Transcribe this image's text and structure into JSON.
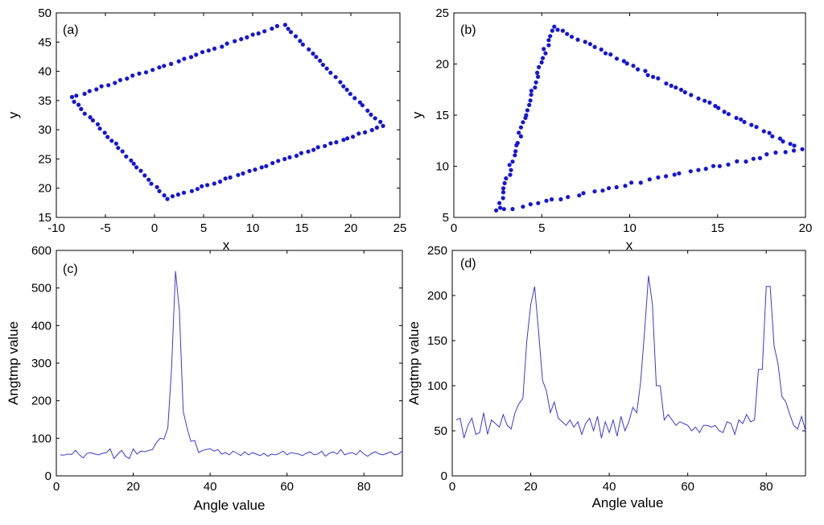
{
  "chart_data": [
    {
      "type": "scatter",
      "panel_label": "(a)",
      "xlabel": "x",
      "ylabel": "y",
      "xlim": [
        -10,
        25
      ],
      "ylim": [
        15,
        50
      ],
      "xticks": [
        -10,
        -5,
        0,
        5,
        10,
        15,
        20,
        25
      ],
      "yticks": [
        15,
        20,
        25,
        30,
        35,
        40,
        45,
        50
      ],
      "marker_color": "#1515d8",
      "vertices": [
        [
          -8.5,
          35.5
        ],
        [
          13.2,
          48.0
        ],
        [
          23.3,
          30.6
        ],
        [
          1.3,
          18.2
        ]
      ],
      "points_per_edge": [
        34,
        25,
        37,
        26
      ]
    },
    {
      "type": "scatter",
      "panel_label": "(b)",
      "xlabel": "x",
      "ylabel": "y",
      "xlim": [
        0,
        20
      ],
      "ylim": [
        5,
        25
      ],
      "xticks": [
        0,
        5,
        10,
        15,
        20
      ],
      "yticks": [
        5,
        10,
        15,
        20,
        25
      ],
      "marker_color": "#1515d8",
      "vertices": [
        [
          2.5,
          5.6
        ],
        [
          5.6,
          23.7
        ],
        [
          19.7,
          11.7
        ]
      ],
      "points_per_edge": [
        40,
        46,
        38
      ]
    },
    {
      "type": "line",
      "panel_label": "(c)",
      "xlabel": "Angle value",
      "ylabel": "Angtmp value",
      "xlim": [
        0,
        90
      ],
      "ylim": [
        0,
        600
      ],
      "xticks": [
        0,
        20,
        40,
        60,
        80
      ],
      "yticks": [
        0,
        100,
        200,
        300,
        400,
        500,
        600
      ],
      "line_color": "#3a3ad8",
      "x": [
        1,
        2,
        3,
        4,
        5,
        6,
        7,
        8,
        9,
        10,
        11,
        12,
        13,
        14,
        15,
        16,
        17,
        18,
        19,
        20,
        21,
        22,
        23,
        24,
        25,
        26,
        27,
        28,
        29,
        30,
        31,
        32,
        33,
        34,
        35,
        36,
        37,
        38,
        39,
        40,
        41,
        42,
        43,
        44,
        45,
        46,
        47,
        48,
        49,
        50,
        51,
        52,
        53,
        54,
        55,
        56,
        57,
        58,
        59,
        60,
        61,
        62,
        63,
        64,
        65,
        66,
        67,
        68,
        69,
        70,
        71,
        72,
        73,
        74,
        75,
        76,
        77,
        78,
        79,
        80,
        81,
        82,
        83,
        84,
        85,
        86,
        87,
        88,
        89,
        90
      ],
      "y": [
        56,
        55,
        58,
        57,
        68,
        56,
        48,
        60,
        62,
        58,
        56,
        60,
        62,
        72,
        46,
        58,
        68,
        52,
        46,
        72,
        58,
        66,
        64,
        68,
        70,
        88,
        100,
        98,
        128,
        290,
        545,
        440,
        172,
        128,
        92,
        94,
        62,
        68,
        70,
        72,
        66,
        70,
        58,
        62,
        56,
        66,
        60,
        54,
        64,
        56,
        62,
        58,
        54,
        60,
        52,
        58,
        56,
        60,
        66,
        56,
        62,
        60,
        58,
        54,
        60,
        64,
        56,
        58,
        66,
        52,
        60,
        64,
        58,
        70,
        56,
        60,
        62,
        56,
        68,
        58,
        52,
        60,
        64,
        58,
        56,
        60,
        64,
        56,
        58,
        66
      ]
    },
    {
      "type": "line",
      "panel_label": "(d)",
      "xlabel": "Angle value",
      "ylabel": "Angtmp value",
      "xlim": [
        0,
        90
      ],
      "ylim": [
        0,
        250
      ],
      "xticks": [
        0,
        20,
        40,
        60,
        80
      ],
      "yticks": [
        0,
        50,
        100,
        150,
        200,
        250
      ],
      "line_color": "#3a3ad8",
      "x": [
        1,
        2,
        3,
        4,
        5,
        6,
        7,
        8,
        9,
        10,
        11,
        12,
        13,
        14,
        15,
        16,
        17,
        18,
        19,
        20,
        21,
        22,
        23,
        24,
        25,
        26,
        27,
        28,
        29,
        30,
        31,
        32,
        33,
        34,
        35,
        36,
        37,
        38,
        39,
        40,
        41,
        42,
        43,
        44,
        45,
        46,
        47,
        48,
        49,
        50,
        51,
        52,
        53,
        54,
        55,
        56,
        57,
        58,
        59,
        60,
        61,
        62,
        63,
        64,
        65,
        66,
        67,
        68,
        69,
        70,
        71,
        72,
        73,
        74,
        75,
        76,
        77,
        78,
        79,
        80,
        81,
        82,
        83,
        84,
        85,
        86,
        87,
        88,
        89,
        90
      ],
      "y": [
        62,
        64,
        42,
        56,
        64,
        46,
        48,
        70,
        46,
        62,
        58,
        54,
        68,
        56,
        52,
        70,
        80,
        86,
        150,
        190,
        210,
        160,
        106,
        94,
        70,
        82,
        64,
        60,
        56,
        62,
        54,
        60,
        46,
        58,
        64,
        50,
        66,
        42,
        60,
        48,
        62,
        44,
        66,
        50,
        60,
        76,
        70,
        104,
        160,
        222,
        190,
        100,
        100,
        62,
        68,
        62,
        56,
        60,
        58,
        56,
        50,
        54,
        48,
        56,
        56,
        54,
        56,
        50,
        48,
        60,
        58,
        46,
        62,
        58,
        68,
        60,
        62,
        118,
        118,
        210,
        210,
        144,
        124,
        88,
        82,
        68,
        56,
        52,
        66,
        50
      ]
    }
  ]
}
